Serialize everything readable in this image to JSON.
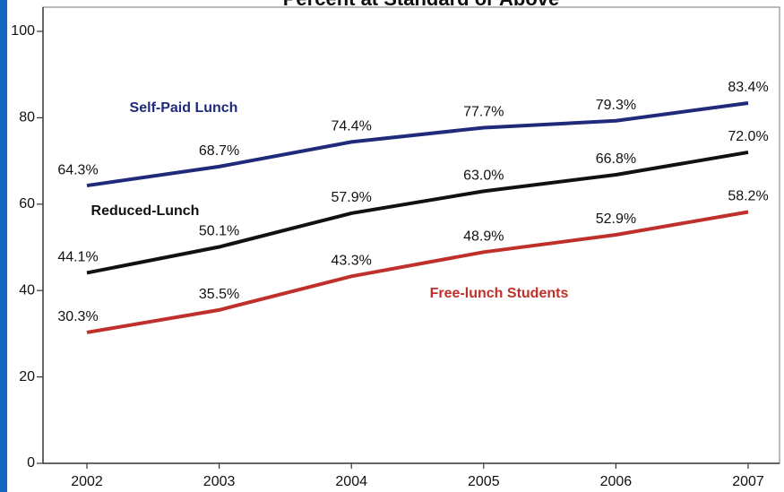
{
  "chart_data": {
    "type": "line",
    "title": "Percent at Standard or Above",
    "categories": [
      "2002",
      "2003",
      "2004",
      "2005",
      "2006",
      "2007"
    ],
    "series": [
      {
        "name": "Self-Paid Lunch",
        "color": "#1f2a7a",
        "values": [
          64.3,
          68.7,
          74.4,
          77.7,
          79.3,
          83.4
        ],
        "value_labels": [
          "64.3%",
          "68.7%",
          "74.4%",
          "77.7%",
          "79.3%",
          "83.4%"
        ]
      },
      {
        "name": "Reduced-Lunch",
        "color": "#111111",
        "values": [
          44.1,
          50.1,
          57.9,
          63.0,
          66.8,
          72.0
        ],
        "value_labels": [
          "44.1%",
          "50.1%",
          "57.9%",
          "63.0%",
          "66.8%",
          "72.0%"
        ]
      },
      {
        "name": "Free-lunch Students",
        "color": "#c0302a",
        "values": [
          30.3,
          35.5,
          43.3,
          48.9,
          52.9,
          58.2
        ],
        "value_labels": [
          "30.3%",
          "35.5%",
          "43.3%",
          "48.9%",
          "52.9%",
          "58.2%"
        ]
      }
    ],
    "ylim": [
      0,
      100
    ],
    "yticks": [
      0,
      20,
      40,
      60,
      80,
      100
    ]
  }
}
